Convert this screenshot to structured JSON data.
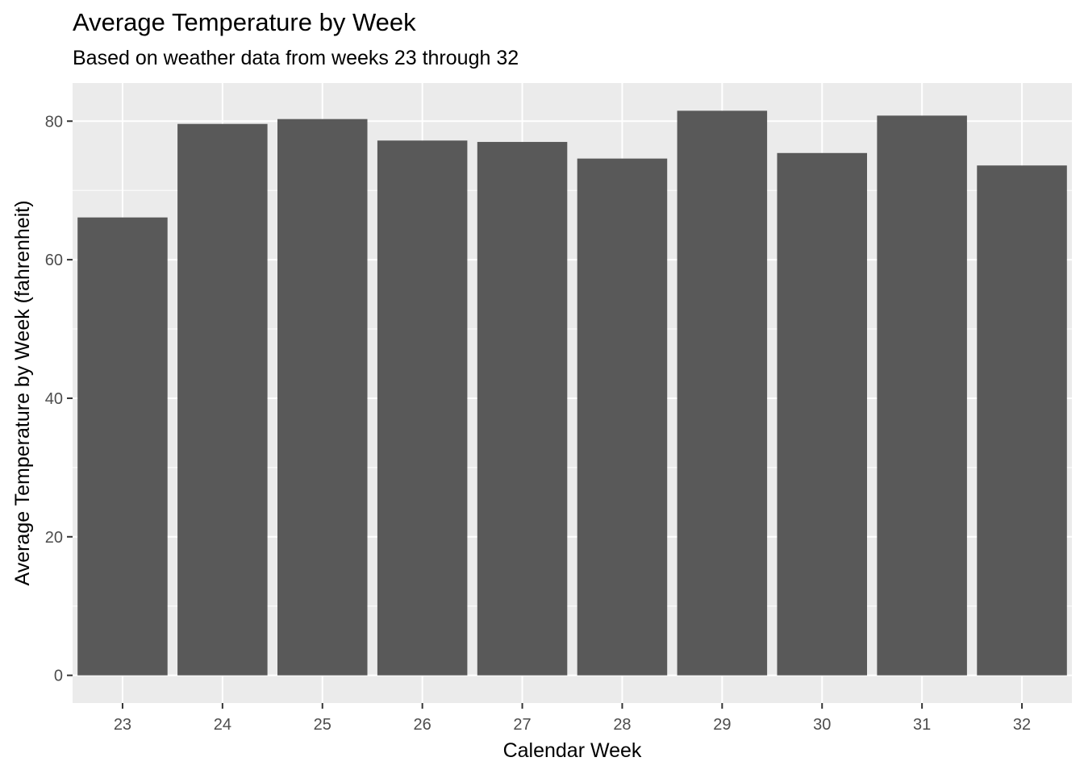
{
  "chart_data": {
    "type": "bar",
    "title": "Average Temperature by Week",
    "subtitle": "Based on weather data from weeks 23 through 32",
    "xlabel": "Calendar Week",
    "ylabel": "Average Temperature by Week (fahrenheit)",
    "categories": [
      "23",
      "24",
      "25",
      "26",
      "27",
      "28",
      "29",
      "30",
      "31",
      "32"
    ],
    "values": [
      66.1,
      79.6,
      80.3,
      77.2,
      77.0,
      74.6,
      81.5,
      75.4,
      80.8,
      73.6
    ],
    "yticks": [
      0,
      20,
      40,
      60,
      80
    ],
    "ytick_labels": [
      "0",
      "20",
      "40",
      "60",
      "80"
    ],
    "ylim": [
      -4,
      85.5
    ],
    "grid": true,
    "bar_color": "#595959",
    "panel_color": "#ebebeb",
    "grid_color": "#ffffff"
  }
}
